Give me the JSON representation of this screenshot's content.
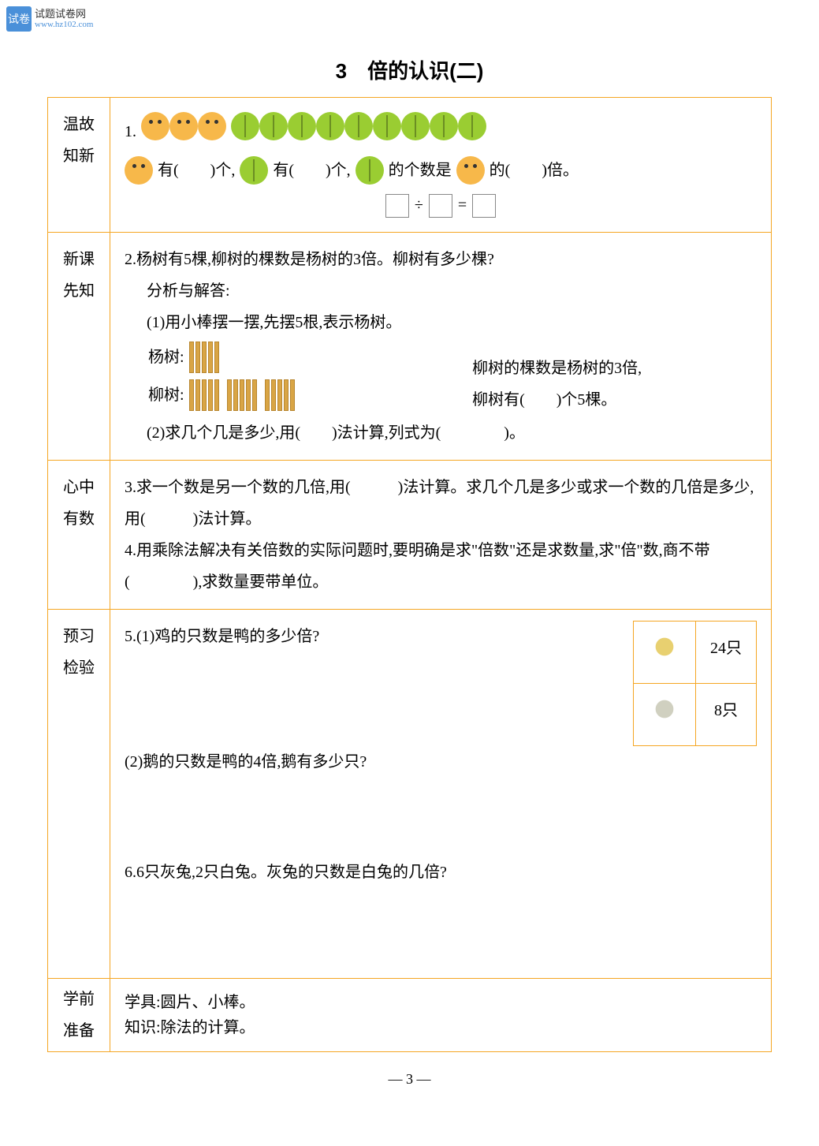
{
  "watermark": {
    "logo": "试卷",
    "cn": "试题试卷网",
    "url": "www.hz102.com"
  },
  "title": "3　倍的认识(二)",
  "labels": {
    "row1": "温故知新",
    "row2": "新课先知",
    "row3": "心中有数",
    "row4": "预习检验",
    "row5a": "学前",
    "row5b": "准备"
  },
  "q1": {
    "num": "1.",
    "ball_count": 3,
    "leaf_count": 9,
    "line": {
      "p1": "有(　　)个,",
      "p2": "有(　　)个,",
      "p3": "的个数是",
      "p4": "的(　　)倍。"
    },
    "eq_div": "÷",
    "eq_eq": "="
  },
  "q2": {
    "text": "2.杨树有5棵,柳树的棵数是杨树的3倍。柳树有多少棵?",
    "sub": "分析与解答:",
    "s1": "(1)用小棒摆一摆,先摆5根,表示杨树。",
    "yang_label": "杨树:",
    "liu_label": "柳树:",
    "right1": "柳树的棵数是杨树的3倍,",
    "right2": "柳树有(　　)个5棵。",
    "s2": "(2)求几个几是多少,用(　　)法计算,列式为(　　　　)。"
  },
  "q3": {
    "text": "3.求一个数是另一个数的几倍,用(　　　)法计算。求几个几是多少或求一个数的几倍是多少,用(　　　)法计算。"
  },
  "q4": {
    "text": "4.用乘除法解决有关倍数的实际问题时,要明确是求\"倍数\"还是求数量,求\"倍\"数,商不带(　　　　),求数量要带单位。"
  },
  "q5": {
    "t1": "5.(1)鸡的只数是鸭的多少倍?",
    "chick": "24只",
    "duck": "8只",
    "t2": "(2)鹅的只数是鸭的4倍,鹅有多少只?"
  },
  "q6": {
    "text": "6.6只灰兔,2只白兔。灰兔的只数是白兔的几倍?"
  },
  "prep": {
    "l1": "学具:圆片、小棒。",
    "l2": "知识:除法的计算。"
  },
  "pagenum": "—  3  —",
  "colors": {
    "border": "#f5a623",
    "ball": "#f7b84a",
    "leaf": "#9acd32"
  }
}
